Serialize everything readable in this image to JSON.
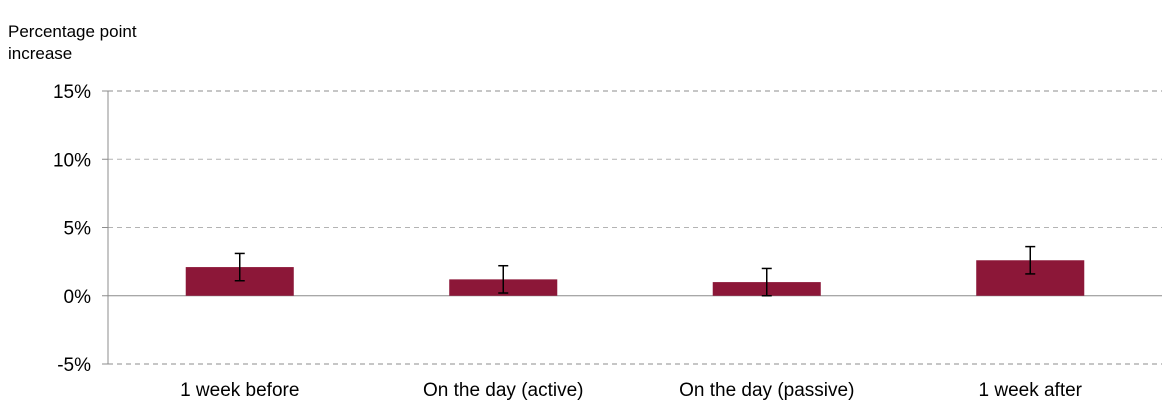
{
  "chart_data": {
    "type": "bar",
    "title": "",
    "xlabel": "",
    "ylabel_lines": [
      "Percentage point",
      "increase"
    ],
    "categories": [
      "1 week before",
      "On the day (active)",
      "On the day (passive)",
      "1 week after"
    ],
    "values": [
      2.1,
      1.2,
      1.0,
      2.6
    ],
    "error_low": [
      1.1,
      0.2,
      0.0,
      1.6
    ],
    "error_high": [
      3.1,
      2.2,
      2.0,
      3.6
    ],
    "ylim": [
      -5,
      15
    ],
    "y_ticks": [
      15,
      10,
      5,
      0,
      -5
    ],
    "y_tick_labels": [
      "15%",
      "10%",
      "5%",
      "0%",
      "-5%"
    ],
    "grid": "horizontal dashed",
    "legend": "none",
    "colors": {
      "bar": "#8c1738",
      "error_bar": "#000000",
      "grid": "#b3b3b3",
      "axis": "#8c8c8c"
    }
  }
}
